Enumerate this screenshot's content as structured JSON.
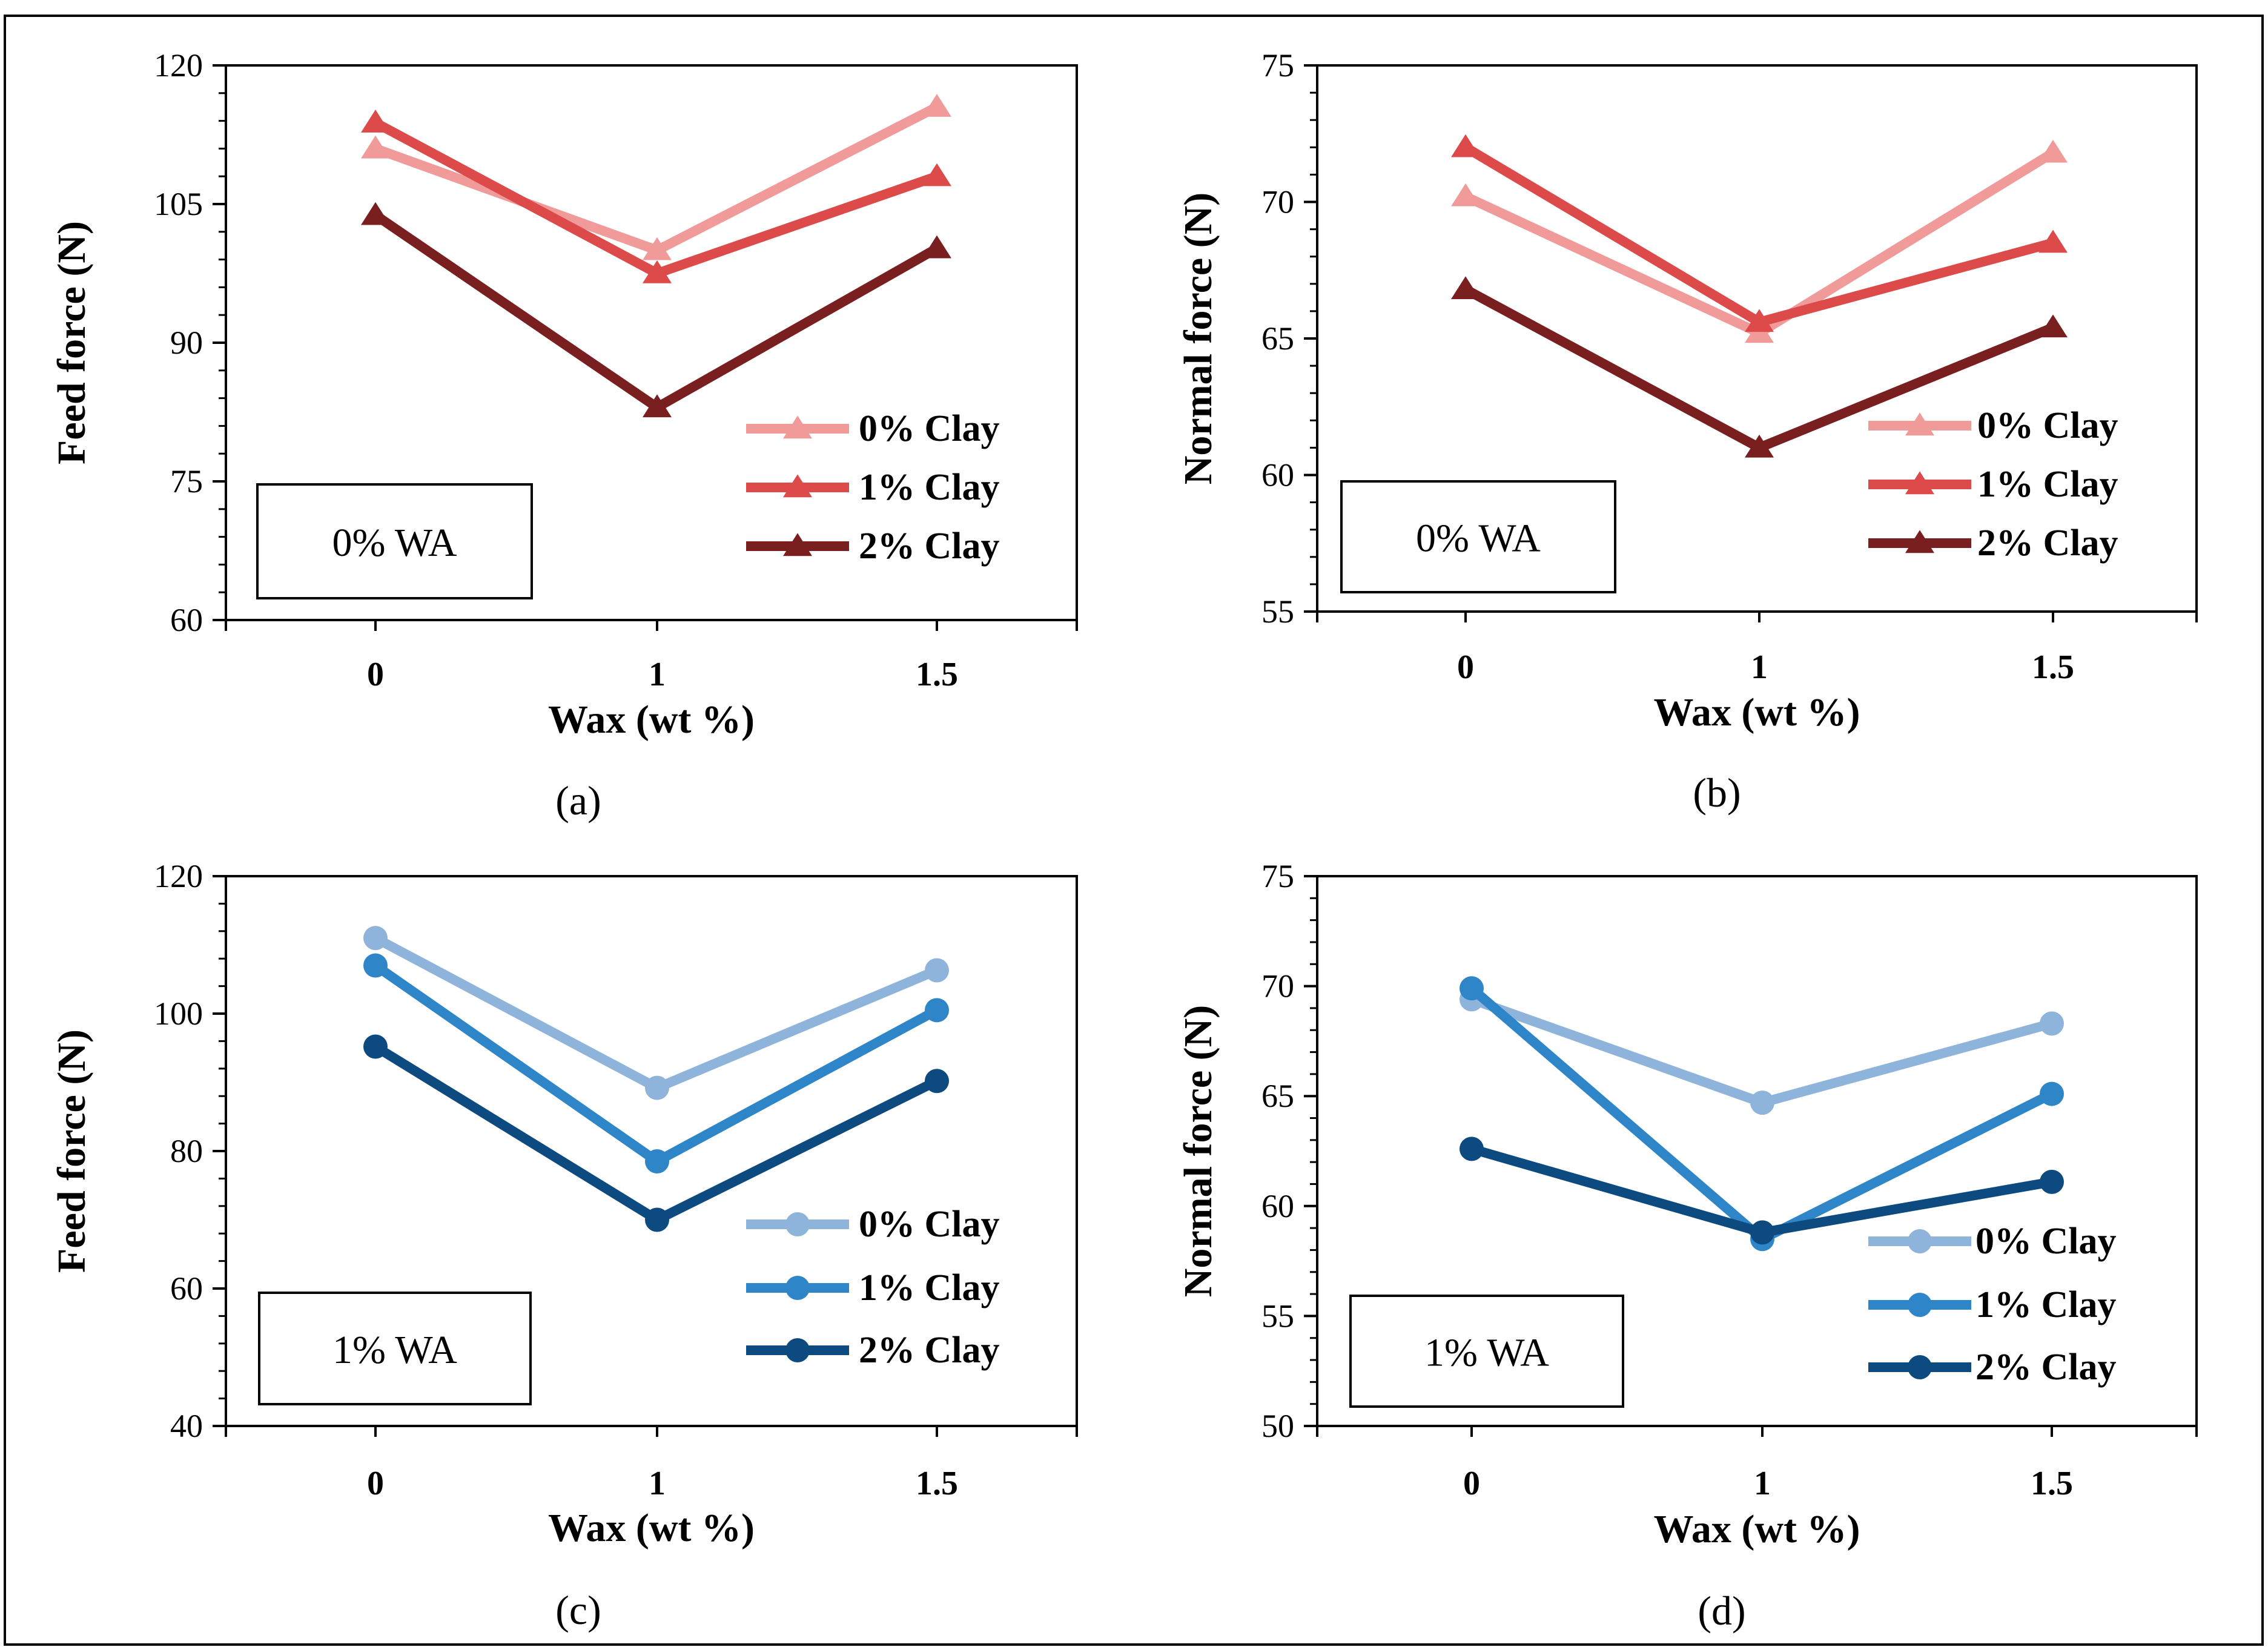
{
  "chart_data": [
    {
      "panel_label": "(a)",
      "type": "line",
      "marker": "triangle",
      "x": [
        "0",
        "1",
        "1.5"
      ],
      "xlabel": "Wax (wt %)",
      "ylabel": "Feed force (N)",
      "ylim": [
        60,
        120
      ],
      "yticks": [
        "60",
        "75",
        "90",
        "105",
        "120"
      ],
      "ytick_values": [
        60,
        75,
        90,
        105,
        120
      ],
      "minor_tick_step": 3,
      "box_text": "0% WA",
      "grid": false,
      "legend_position": "lower-right",
      "series": [
        {
          "name": "0% Clay",
          "color": "#F09A9A",
          "values": [
            111,
            100,
            115.5
          ]
        },
        {
          "name": "1% Clay",
          "color": "#DD4A4A",
          "values": [
            113.8,
            97.5,
            108
          ]
        },
        {
          "name": "2% Clay",
          "color": "#7A1F1F",
          "values": [
            103.8,
            83,
            100.2
          ]
        }
      ]
    },
    {
      "panel_label": "(b)",
      "type": "line",
      "marker": "triangle",
      "x": [
        "0",
        "1",
        "1.5"
      ],
      "xlabel": "Wax (wt %)",
      "ylabel": "Normal force (N)",
      "ylim": [
        55,
        75
      ],
      "yticks": [
        "55",
        "60",
        "65",
        "70",
        "75"
      ],
      "ytick_values": [
        55,
        60,
        65,
        70,
        75
      ],
      "minor_tick_step": 1,
      "box_text": "0% WA",
      "grid": false,
      "legend_position": "lower-right",
      "series": [
        {
          "name": "0% Clay",
          "color": "#F09A9A",
          "values": [
            70.2,
            65.2,
            71.8
          ]
        },
        {
          "name": "1% Clay",
          "color": "#DD4A4A",
          "values": [
            72,
            65.6,
            68.5
          ]
        },
        {
          "name": "2% Clay",
          "color": "#7A1F1F",
          "values": [
            66.8,
            61,
            65.4
          ]
        }
      ]
    },
    {
      "panel_label": "(c)",
      "type": "line",
      "marker": "circle",
      "x": [
        "0",
        "1",
        "1.5"
      ],
      "xlabel": "Wax (wt %)",
      "ylabel": "Feed force (N)",
      "ylim": [
        40,
        120
      ],
      "yticks": [
        "40",
        "60",
        "80",
        "100",
        "120"
      ],
      "ytick_values": [
        40,
        60,
        80,
        100,
        120
      ],
      "minor_tick_step": 4,
      "box_text": "1% WA",
      "grid": false,
      "legend_position": "lower-right",
      "series": [
        {
          "name": "0% Clay",
          "color": "#8FB4DC",
          "values": [
            111,
            89.2,
            106.3
          ]
        },
        {
          "name": "1% Clay",
          "color": "#2E86C8",
          "values": [
            107,
            78.5,
            100.5
          ]
        },
        {
          "name": "2% Clay",
          "color": "#0D4A80",
          "values": [
            95.2,
            70,
            90.2
          ]
        }
      ]
    },
    {
      "panel_label": "(d)",
      "type": "line",
      "marker": "circle",
      "x": [
        "0",
        "1",
        "1.5"
      ],
      "xlabel": "Wax (wt %)",
      "ylabel": "Normal force (N)",
      "ylim": [
        50,
        75
      ],
      "yticks": [
        "50",
        "55",
        "60",
        "65",
        "70",
        "75"
      ],
      "ytick_values": [
        50,
        55,
        60,
        65,
        70,
        75
      ],
      "minor_tick_step": 1,
      "box_text": "1% WA",
      "grid": false,
      "legend_position": "lower-right",
      "series": [
        {
          "name": "0% Clay",
          "color": "#8FB4DC",
          "values": [
            69.4,
            64.7,
            68.3
          ]
        },
        {
          "name": "1% Clay",
          "color": "#2E86C8",
          "values": [
            69.9,
            58.5,
            65.1
          ]
        },
        {
          "name": "2% Clay",
          "color": "#0D4A80",
          "values": [
            62.6,
            58.8,
            61.1
          ]
        }
      ]
    }
  ]
}
